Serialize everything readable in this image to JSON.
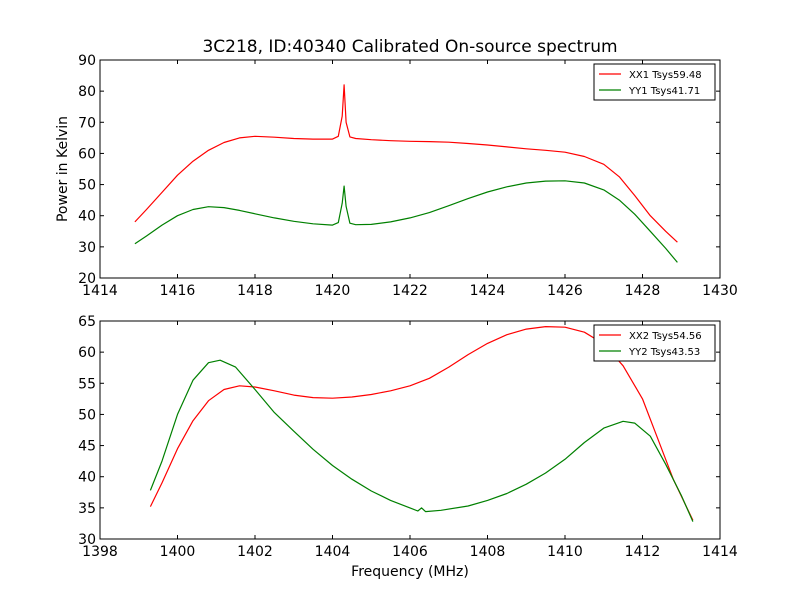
{
  "chart_data": [
    {
      "type": "line",
      "title": "3C218, ID:40340 Calibrated On-source spectrum",
      "xlabel": "",
      "ylabel": "Power in Kelvin",
      "xlim": [
        1414,
        1430
      ],
      "ylim": [
        20,
        90
      ],
      "xticks": [
        1414,
        1416,
        1418,
        1420,
        1422,
        1424,
        1426,
        1428,
        1430
      ],
      "yticks": [
        20,
        30,
        40,
        50,
        60,
        70,
        80,
        90
      ],
      "legend_position": "top-right",
      "grid": false,
      "series": [
        {
          "name": "XX1 Tsys59.48",
          "color": "#ff0000",
          "points": [
            [
              1414.9,
              38
            ],
            [
              1415.2,
              42
            ],
            [
              1415.6,
              47.5
            ],
            [
              1416.0,
              53
            ],
            [
              1416.4,
              57.5
            ],
            [
              1416.8,
              61
            ],
            [
              1417.2,
              63.5
            ],
            [
              1417.6,
              65
            ],
            [
              1418.0,
              65.5
            ],
            [
              1418.5,
              65.2
            ],
            [
              1419.0,
              64.8
            ],
            [
              1419.5,
              64.6
            ],
            [
              1420.0,
              64.6
            ],
            [
              1420.15,
              65.5
            ],
            [
              1420.25,
              72
            ],
            [
              1420.3,
              82
            ],
            [
              1420.35,
              70
            ],
            [
              1420.45,
              65.3
            ],
            [
              1420.6,
              64.8
            ],
            [
              1421.0,
              64.4
            ],
            [
              1421.5,
              64.1
            ],
            [
              1422.0,
              63.9
            ],
            [
              1422.5,
              63.8
            ],
            [
              1423.0,
              63.6
            ],
            [
              1423.5,
              63.2
            ],
            [
              1424.0,
              62.7
            ],
            [
              1424.5,
              62.1
            ],
            [
              1425.0,
              61.5
            ],
            [
              1425.5,
              61.0
            ],
            [
              1426.0,
              60.4
            ],
            [
              1426.5,
              59.0
            ],
            [
              1427.0,
              56.5
            ],
            [
              1427.4,
              52.5
            ],
            [
              1427.8,
              46.5
            ],
            [
              1428.2,
              40
            ],
            [
              1428.6,
              35
            ],
            [
              1428.9,
              31.5
            ]
          ]
        },
        {
          "name": "YY1 Tsys41.71",
          "color": "#008000",
          "points": [
            [
              1414.9,
              31
            ],
            [
              1415.2,
              33.5
            ],
            [
              1415.6,
              37
            ],
            [
              1416.0,
              40
            ],
            [
              1416.4,
              42
            ],
            [
              1416.8,
              42.9
            ],
            [
              1417.2,
              42.6
            ],
            [
              1417.6,
              41.7
            ],
            [
              1418.0,
              40.6
            ],
            [
              1418.5,
              39.3
            ],
            [
              1419.0,
              38.2
            ],
            [
              1419.5,
              37.4
            ],
            [
              1420.0,
              37.0
            ],
            [
              1420.15,
              37.8
            ],
            [
              1420.25,
              44
            ],
            [
              1420.3,
              49.5
            ],
            [
              1420.35,
              43
            ],
            [
              1420.45,
              37.6
            ],
            [
              1420.6,
              37.1
            ],
            [
              1421.0,
              37.2
            ],
            [
              1421.5,
              38.0
            ],
            [
              1422.0,
              39.3
            ],
            [
              1422.5,
              41.0
            ],
            [
              1423.0,
              43.2
            ],
            [
              1423.5,
              45.5
            ],
            [
              1424.0,
              47.6
            ],
            [
              1424.5,
              49.3
            ],
            [
              1425.0,
              50.5
            ],
            [
              1425.5,
              51.1
            ],
            [
              1426.0,
              51.2
            ],
            [
              1426.5,
              50.5
            ],
            [
              1427.0,
              48.3
            ],
            [
              1427.4,
              45.0
            ],
            [
              1427.8,
              40.5
            ],
            [
              1428.2,
              35.0
            ],
            [
              1428.6,
              29.5
            ],
            [
              1428.9,
              25
            ]
          ]
        }
      ]
    },
    {
      "type": "line",
      "title": "",
      "xlabel": "Frequency (MHz)",
      "ylabel": "",
      "xlim": [
        1398,
        1414
      ],
      "ylim": [
        30,
        65
      ],
      "xticks": [
        1398,
        1400,
        1402,
        1404,
        1406,
        1408,
        1410,
        1412,
        1414
      ],
      "yticks": [
        30,
        35,
        40,
        45,
        50,
        55,
        60,
        65
      ],
      "legend_position": "top-right",
      "grid": false,
      "series": [
        {
          "name": "XX2 Tsys54.56",
          "color": "#ff0000",
          "points": [
            [
              1399.3,
              35.2
            ],
            [
              1399.6,
              39.0
            ],
            [
              1400.0,
              44.5
            ],
            [
              1400.4,
              49.0
            ],
            [
              1400.8,
              52.2
            ],
            [
              1401.2,
              54.0
            ],
            [
              1401.6,
              54.6
            ],
            [
              1402.0,
              54.4
            ],
            [
              1402.5,
              53.8
            ],
            [
              1403.0,
              53.1
            ],
            [
              1403.5,
              52.7
            ],
            [
              1404.0,
              52.6
            ],
            [
              1404.5,
              52.8
            ],
            [
              1405.0,
              53.2
            ],
            [
              1405.5,
              53.8
            ],
            [
              1406.0,
              54.6
            ],
            [
              1406.5,
              55.8
            ],
            [
              1407.0,
              57.6
            ],
            [
              1407.5,
              59.6
            ],
            [
              1408.0,
              61.4
            ],
            [
              1408.5,
              62.8
            ],
            [
              1409.0,
              63.7
            ],
            [
              1409.5,
              64.1
            ],
            [
              1410.0,
              64.0
            ],
            [
              1410.5,
              63.2
            ],
            [
              1411.0,
              61.3
            ],
            [
              1411.5,
              57.8
            ],
            [
              1412.0,
              52.5
            ],
            [
              1412.4,
              46.0
            ],
            [
              1412.8,
              39.5
            ],
            [
              1413.3,
              33.0
            ]
          ]
        },
        {
          "name": "YY2 Tsys43.53",
          "color": "#008000",
          "points": [
            [
              1399.3,
              37.8
            ],
            [
              1399.6,
              42.5
            ],
            [
              1400.0,
              50.0
            ],
            [
              1400.4,
              55.5
            ],
            [
              1400.8,
              58.3
            ],
            [
              1401.1,
              58.7
            ],
            [
              1401.5,
              57.6
            ],
            [
              1402.0,
              54.0
            ],
            [
              1402.5,
              50.3
            ],
            [
              1403.0,
              47.3
            ],
            [
              1403.5,
              44.4
            ],
            [
              1404.0,
              41.8
            ],
            [
              1404.5,
              39.6
            ],
            [
              1405.0,
              37.7
            ],
            [
              1405.5,
              36.2
            ],
            [
              1406.0,
              35.0
            ],
            [
              1406.2,
              34.5
            ],
            [
              1406.3,
              35.0
            ],
            [
              1406.4,
              34.4
            ],
            [
              1406.8,
              34.6
            ],
            [
              1407.5,
              35.3
            ],
            [
              1408.0,
              36.2
            ],
            [
              1408.5,
              37.3
            ],
            [
              1409.0,
              38.8
            ],
            [
              1409.5,
              40.6
            ],
            [
              1410.0,
              42.8
            ],
            [
              1410.5,
              45.5
            ],
            [
              1411.0,
              47.8
            ],
            [
              1411.5,
              48.9
            ],
            [
              1411.8,
              48.6
            ],
            [
              1412.2,
              46.5
            ],
            [
              1412.6,
              42.0
            ],
            [
              1413.0,
              37.0
            ],
            [
              1413.3,
              32.8
            ]
          ]
        }
      ]
    }
  ]
}
